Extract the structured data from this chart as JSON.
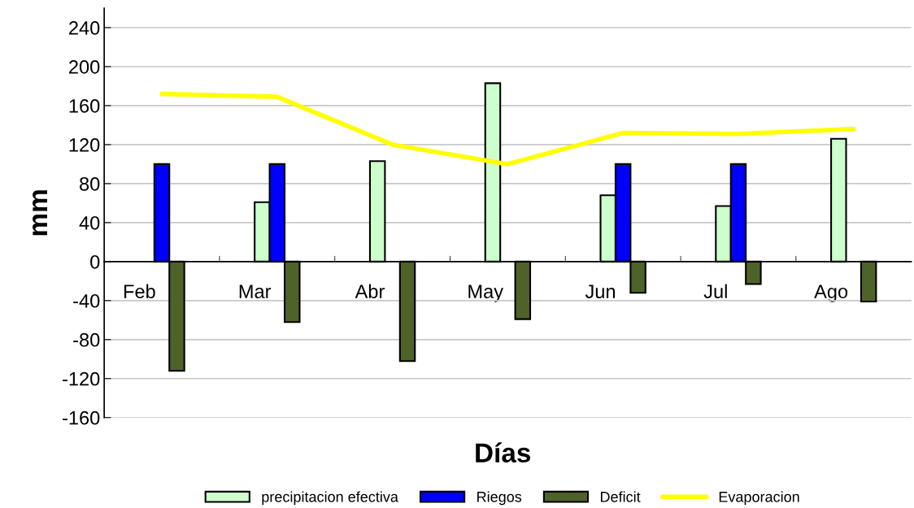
{
  "chart_data": {
    "type": "bar",
    "xlabel": "Días",
    "ylabel": "mm",
    "categories": [
      "Feb",
      "Mar",
      "Abr",
      "May",
      "Jun",
      "Jul",
      "Ago"
    ],
    "series": [
      {
        "name": "precipitacion efectiva",
        "color": "#ccffcc",
        "values": [
          null,
          61,
          103,
          183,
          68,
          57,
          126
        ]
      },
      {
        "name": "Riegos",
        "color": "#0000ff",
        "values": [
          100,
          100,
          null,
          null,
          100,
          100,
          null
        ]
      },
      {
        "name": "Deficit",
        "color": "#4f6228",
        "values": [
          -112,
          -62,
          -102,
          -59,
          -32,
          -23,
          -41
        ]
      },
      {
        "name": "Evaporacion",
        "color": "#ffff00",
        "type": "line",
        "values": [
          172,
          169,
          120,
          100,
          132,
          131,
          136
        ]
      }
    ],
    "ylim": [
      -160,
      260
    ],
    "yticks": [
      -160,
      -120,
      -80,
      -40,
      0,
      40,
      80,
      120,
      160,
      200,
      240
    ],
    "grid": "y",
    "legend": "bottom"
  }
}
